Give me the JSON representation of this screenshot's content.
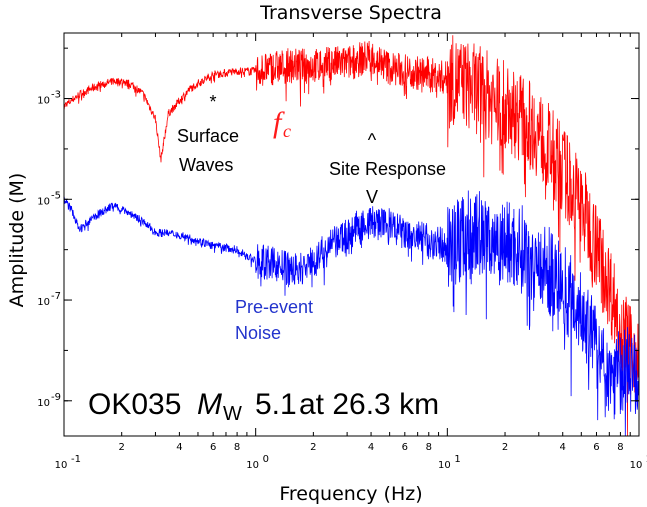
{
  "chart_data": {
    "type": "line",
    "title": "Transverse Spectra",
    "xlabel": "Frequency (Hz)",
    "ylabel": "Amplitude (M)",
    "x_scale": "log",
    "y_scale": "log",
    "xlim": [
      0.1,
      100
    ],
    "ylim": [
      2e-10,
      0.02
    ],
    "x_ticks": [
      {
        "value": 0.1,
        "base": "10",
        "exp": "-1"
      },
      {
        "value": 1,
        "base": "10",
        "exp": "0"
      },
      {
        "value": 10,
        "base": "10",
        "exp": "1"
      },
      {
        "value": 100,
        "base": "10",
        "exp": "2"
      }
    ],
    "x_minor_labels": [
      {
        "value": 0.2,
        "label": "2"
      },
      {
        "value": 0.4,
        "label": "4"
      },
      {
        "value": 0.6,
        "label": "6"
      },
      {
        "value": 0.8,
        "label": "8"
      },
      {
        "value": 2,
        "label": "2"
      },
      {
        "value": 4,
        "label": "4"
      },
      {
        "value": 6,
        "label": "6"
      },
      {
        "value": 8,
        "label": "8"
      },
      {
        "value": 20,
        "label": "2"
      },
      {
        "value": 40,
        "label": "4"
      },
      {
        "value": 60,
        "label": "6"
      },
      {
        "value": 80,
        "label": "8"
      }
    ],
    "y_ticks": [
      {
        "value": 0.001,
        "base": "10",
        "exp": "-3"
      },
      {
        "value": 1e-05,
        "base": "10",
        "exp": "-5"
      },
      {
        "value": 1e-07,
        "base": "10",
        "exp": "-7"
      },
      {
        "value": 1e-09,
        "base": "10",
        "exp": "-9"
      }
    ],
    "grid": false,
    "series": [
      {
        "color": "#ff0000",
        "x": [
          0.1,
          0.12,
          0.15,
          0.18,
          0.2,
          0.23,
          0.26,
          0.3,
          0.32,
          0.35,
          0.4,
          0.45,
          0.5,
          0.6,
          0.7,
          0.8,
          1.0,
          1.2,
          1.5,
          2.0,
          2.5,
          3.0,
          4.0,
          5.0,
          6.0,
          8.0,
          10,
          12,
          15,
          20,
          25,
          30,
          40,
          50,
          60,
          70,
          80,
          90,
          100
        ],
        "y": [
          0.0007,
          0.0012,
          0.0018,
          0.0022,
          0.0022,
          0.0018,
          0.0012,
          0.0004,
          6e-05,
          0.0005,
          0.0009,
          0.0015,
          0.002,
          0.003,
          0.0032,
          0.0035,
          0.0035,
          0.004,
          0.0045,
          0.0045,
          0.005,
          0.005,
          0.007,
          0.004,
          0.0035,
          0.003,
          0.0025,
          0.002,
          0.0014,
          0.0007,
          0.0004,
          0.0002,
          4e-05,
          8e-06,
          1.2e-06,
          2e-07,
          3e-08,
          1e-08,
          1e-08
        ]
      },
      {
        "color": "#0000ff",
        "x": [
          0.1,
          0.11,
          0.12,
          0.15,
          0.18,
          0.2,
          0.25,
          0.3,
          0.4,
          0.5,
          0.6,
          0.8,
          1.0,
          1.3,
          1.5,
          1.7,
          2.0,
          2.5,
          3.0,
          3.5,
          4.0,
          5.0,
          6.0,
          8.0,
          10,
          12,
          15,
          20,
          25,
          30,
          40,
          50,
          60,
          70,
          80,
          90,
          100
        ],
        "y": [
          1e-05,
          6e-06,
          2.5e-06,
          5e-06,
          7.5e-06,
          6.5e-06,
          4e-06,
          2.2e-06,
          2e-06,
          1.5e-06,
          1.2e-06,
          1e-06,
          6e-07,
          5e-07,
          4e-07,
          4e-07,
          6e-07,
          1.2e-06,
          2e-06,
          3e-06,
          3.5e-06,
          3e-06,
          2e-06,
          1.5e-06,
          1.2e-06,
          1.8e-06,
          2.2e-06,
          1.4e-06,
          1e-06,
          6e-07,
          2e-07,
          6e-08,
          1e-08,
          3e-09,
          4e-09,
          4e-09,
          4e-09
        ]
      }
    ],
    "annotations": {
      "surface_star": "*",
      "surface_line1": "Surface",
      "surface_line2": "Waves",
      "fc_main": "f",
      "fc_sub": "c",
      "site_caret": "^",
      "site_label": "Site Response",
      "site_v": "V",
      "noise_line1": "Pre-event",
      "noise_line2": "Noise",
      "event_station": "OK035",
      "event_m": "M",
      "event_w": "W",
      "event_mag": "5.1",
      "event_rest": "at 26.3 km"
    },
    "annotation_colors": {
      "fc": "#ff1a1a",
      "noise": "#2233cc"
    }
  }
}
